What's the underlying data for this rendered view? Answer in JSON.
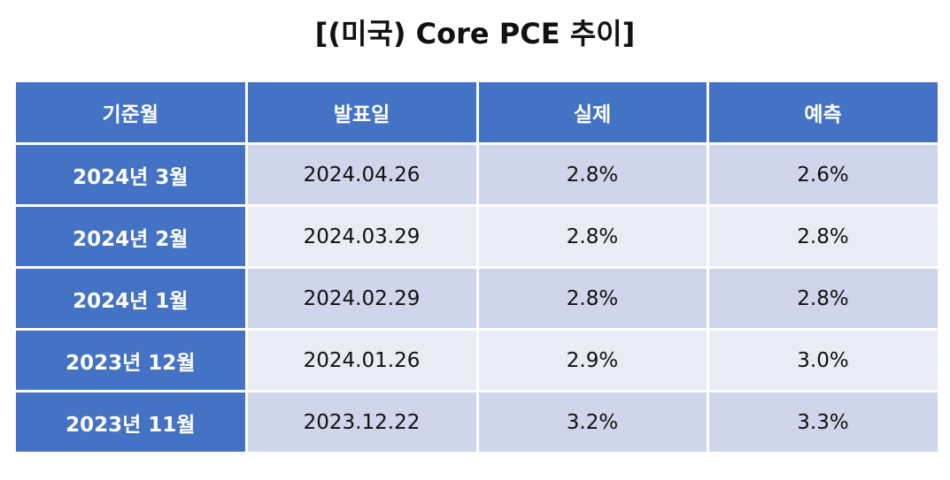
{
  "title": "[(미국) Core PCE 추이]",
  "table": {
    "headers": [
      "기준월",
      "발표일",
      "실제",
      "예측"
    ],
    "rows": [
      {
        "month": "2024년 3월",
        "release": "2024.04.26",
        "actual": "2.8%",
        "forecast": "2.6%"
      },
      {
        "month": "2024년 2월",
        "release": "2024.03.29",
        "actual": "2.8%",
        "forecast": "2.8%"
      },
      {
        "month": "2024년 1월",
        "release": "2024.02.29",
        "actual": "2.8%",
        "forecast": "2.8%"
      },
      {
        "month": "2023년 12월",
        "release": "2024.01.26",
        "actual": "2.9%",
        "forecast": "3.0%"
      },
      {
        "month": "2023년 11월",
        "release": "2023.12.22",
        "actual": "3.2%",
        "forecast": "3.3%"
      }
    ]
  },
  "colors": {
    "header_bg": "#4472c4",
    "row_odd_bg": "#cfd5ea",
    "row_even_bg": "#e9ebf5"
  }
}
